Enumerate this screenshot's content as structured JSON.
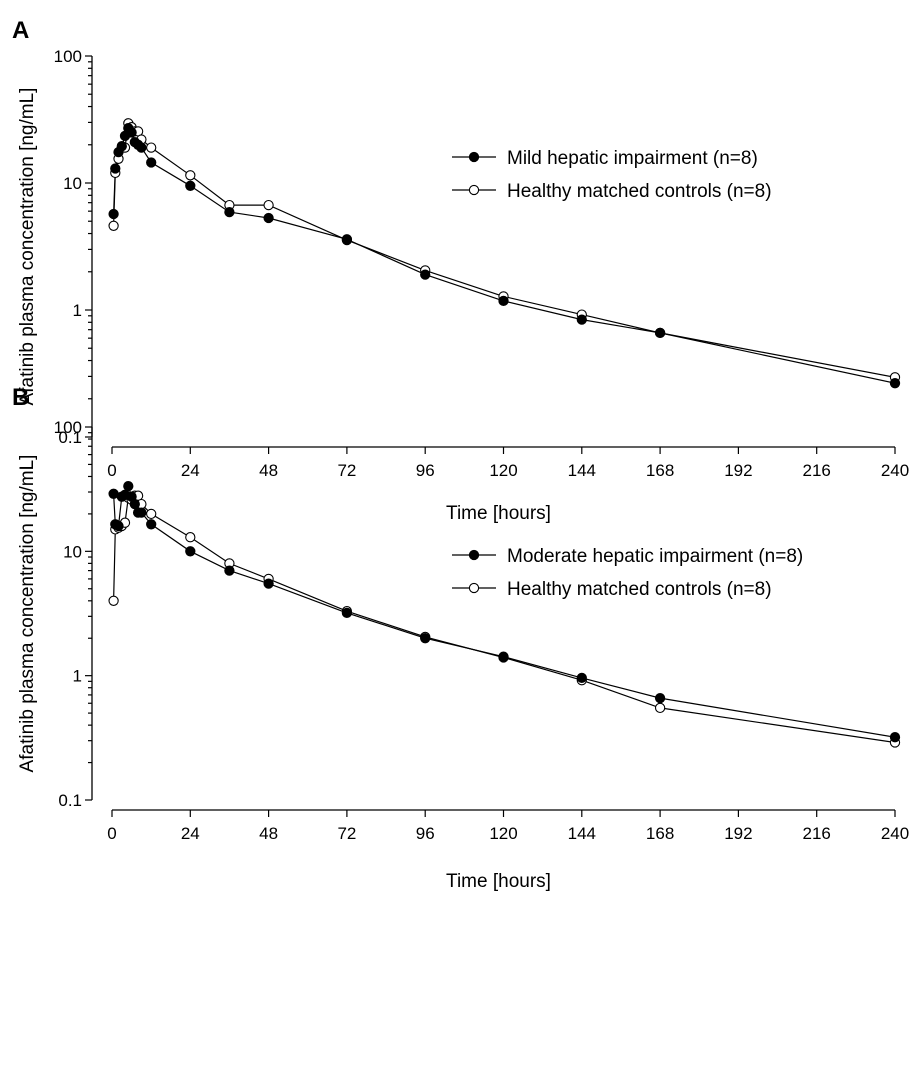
{
  "chart_data": [
    {
      "type": "line",
      "panel_label": "A",
      "xlabel": "Time [hours]",
      "ylabel": "Afatinib plasma concentration [ng/mL]",
      "y_scale": "log",
      "xlim": [
        0,
        240
      ],
      "ylim": [
        0.1,
        100
      ],
      "x_ticks": [
        "0",
        "24",
        "48",
        "72",
        "96",
        "120",
        "144",
        "168",
        "192",
        "216",
        "240"
      ],
      "y_ticks": [
        "0.1",
        "1",
        "10",
        "100"
      ],
      "legend_position": "top-right",
      "series": [
        {
          "name": "Mild hepatic impairment (n=8)",
          "marker": "filled-circle",
          "x": [
            0.5,
            1,
            2,
            3,
            4,
            5,
            6,
            7,
            8,
            9,
            12,
            24,
            36,
            48,
            72,
            96,
            120,
            144,
            168,
            240
          ],
          "y": [
            5.7,
            13,
            17.5,
            19.5,
            23.5,
            27,
            25,
            21,
            20,
            19,
            14.5,
            9.5,
            5.9,
            5.3,
            3.6,
            1.9,
            1.18,
            0.84,
            0.66,
            0.265
          ]
        },
        {
          "name": "Healthy matched controls (n=8)",
          "marker": "open-circle",
          "x": [
            0.5,
            1,
            2,
            3,
            4,
            5,
            6,
            7,
            8,
            9,
            12,
            24,
            36,
            48,
            72,
            96,
            120,
            144,
            168,
            240
          ],
          "y": [
            4.6,
            12,
            15.5,
            19,
            19,
            29.5,
            27.5,
            25.5,
            25.5,
            22,
            19,
            11.5,
            6.7,
            6.7,
            3.55,
            2.05,
            1.28,
            0.92,
            0.66,
            0.295
          ]
        }
      ]
    },
    {
      "type": "line",
      "panel_label": "B",
      "xlabel": "Time [hours]",
      "ylabel": "Afatinib plasma concentration [ng/mL]",
      "y_scale": "log",
      "xlim": [
        0,
        240
      ],
      "ylim": [
        0.1,
        100
      ],
      "x_ticks": [
        "0",
        "24",
        "48",
        "72",
        "96",
        "120",
        "144",
        "168",
        "192",
        "216",
        "240"
      ],
      "y_ticks": [
        "0.1",
        "1",
        "10",
        "100"
      ],
      "legend_position": "top-right",
      "series": [
        {
          "name": "Moderate hepatic impairment (n=8)",
          "marker": "filled-circle",
          "x": [
            0.5,
            1,
            2,
            3,
            4,
            5,
            6,
            7,
            8,
            9,
            12,
            24,
            36,
            48,
            72,
            96,
            120,
            144,
            168,
            240
          ],
          "y": [
            29,
            16.5,
            16,
            27.5,
            28.5,
            33.5,
            27.5,
            24,
            20.5,
            20.5,
            16.5,
            10,
            7,
            5.5,
            3.2,
            2,
            1.42,
            0.96,
            0.66,
            0.32
          ]
        },
        {
          "name": "Healthy matched controls (n=8)",
          "marker": "open-circle",
          "x": [
            0.5,
            1,
            2,
            3,
            4,
            5,
            6,
            7,
            8,
            9,
            12,
            24,
            36,
            48,
            72,
            96,
            120,
            144,
            168,
            240
          ],
          "y": [
            4,
            15,
            15.5,
            16,
            17,
            27,
            26,
            28,
            28,
            24,
            20,
            13,
            8,
            6,
            3.3,
            2.05,
            1.4,
            0.92,
            0.55,
            0.29
          ]
        }
      ]
    }
  ]
}
